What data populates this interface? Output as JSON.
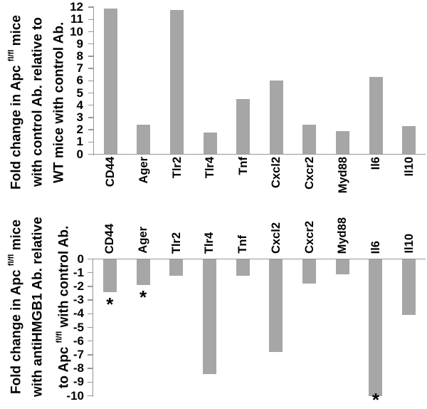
{
  "style": {
    "background": "#ffffff",
    "bar_color": "#a6a6a6",
    "axis_color": "#969696",
    "text_color": "#000000",
    "significance_symbol": "*"
  },
  "chart_data": [
    {
      "type": "bar",
      "position": "top",
      "title": "",
      "xlabel": "",
      "ylabel": "Fold change in Apc fl/fl mice with control Ab. relative to WT mice with control Ab.",
      "ylabel_lines": [
        {
          "text": "Fold change in Apc ",
          "sup": "fl/fl",
          "after": " mice"
        },
        {
          "text": "with control Ab. relative to",
          "sup": "",
          "after": ""
        },
        {
          "text": "WT mice with control Ab.",
          "sup": "",
          "after": ""
        }
      ],
      "categories": [
        "CD44",
        "Ager",
        "Tlr2",
        "Tlr4",
        "Tnf",
        "Cxcl2",
        "Cxcr2",
        "Myd88",
        "Il6",
        "Il10"
      ],
      "values": [
        11.9,
        2.4,
        11.8,
        1.8,
        4.5,
        6.0,
        2.4,
        1.9,
        6.3,
        2.3
      ],
      "ylim": [
        0,
        12
      ],
      "ytick_labels": [
        "0",
        "1",
        "2",
        "3",
        "4",
        "5",
        "6",
        "7",
        "8",
        "9",
        "10",
        "11",
        "12"
      ],
      "grid": false,
      "legend": null,
      "annotations": []
    },
    {
      "type": "bar",
      "position": "bottom",
      "title": "",
      "xlabel": "",
      "ylabel": "Fold change in Apc fl/fl mice with antiHMGB1 Ab. relative to Apc fl/fl with control Ab.",
      "ylabel_lines": [
        {
          "text": "Fold change in Apc ",
          "sup": "fl/fl",
          "after": " mice"
        },
        {
          "text": "with antiHMGB1 Ab. relative",
          "sup": "",
          "after": ""
        },
        {
          "text": "to Apc ",
          "sup": "fl/fl",
          "after": " with control Ab."
        }
      ],
      "categories": [
        "CD44",
        "Ager",
        "Tlr2",
        "Tlr4",
        "Tnf",
        "Cxcl2",
        "Cxcr2",
        "Myd88",
        "Il6",
        "Il10"
      ],
      "values": [
        -2.4,
        -1.9,
        -1.2,
        -8.4,
        -1.2,
        -6.8,
        -1.8,
        -1.1,
        -10.0,
        -4.1
      ],
      "ylim": [
        -10,
        0
      ],
      "ytick_labels": [
        "0",
        "-1",
        "-2",
        "-3",
        "-4",
        "-5",
        "-6",
        "-7",
        "-8",
        "-9",
        "-10"
      ],
      "grid": false,
      "legend": null,
      "annotations": [
        {
          "symbol": "*",
          "category": "CD44",
          "placement": "below-bar"
        },
        {
          "symbol": "*",
          "category": "Ager",
          "placement": "below-bar"
        },
        {
          "symbol": "*",
          "category": "Il6",
          "placement": "bar-end"
        }
      ]
    }
  ]
}
